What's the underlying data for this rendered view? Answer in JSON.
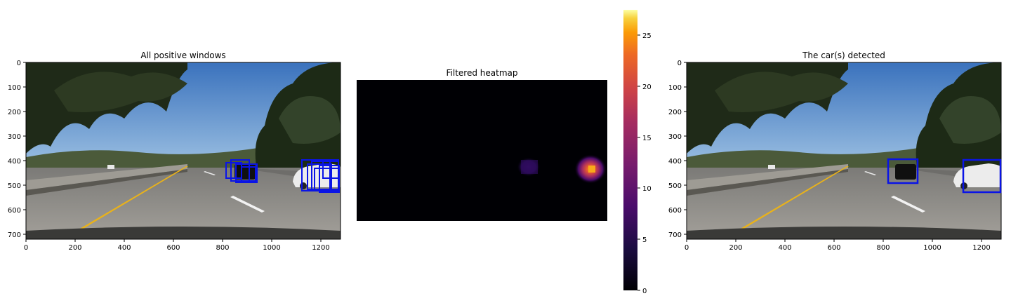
{
  "panels": {
    "left": {
      "title": "All positive windows",
      "x_ticks": [
        "0",
        "200",
        "400",
        "600",
        "800",
        "1000",
        "1200"
      ],
      "y_ticks": [
        "0",
        "100",
        "200",
        "300",
        "400",
        "500",
        "600",
        "700"
      ]
    },
    "middle": {
      "title": "Filtered heatmap"
    },
    "right": {
      "title": "The car(s) detected",
      "x_ticks": [
        "0",
        "200",
        "400",
        "600",
        "800",
        "1000",
        "1200"
      ],
      "y_ticks": [
        "0",
        "100",
        "200",
        "300",
        "400",
        "500",
        "600",
        "700"
      ]
    }
  },
  "colorbar": {
    "ticks": [
      "0",
      "5",
      "10",
      "15",
      "20",
      "25"
    ],
    "min": 0,
    "max": 27.5
  },
  "colors": {
    "box": "#0a14e6",
    "sky": "#4f86c8",
    "road": "#8d8b86",
    "heat_bg": "#000004",
    "lane": "#e9b21a"
  }
}
